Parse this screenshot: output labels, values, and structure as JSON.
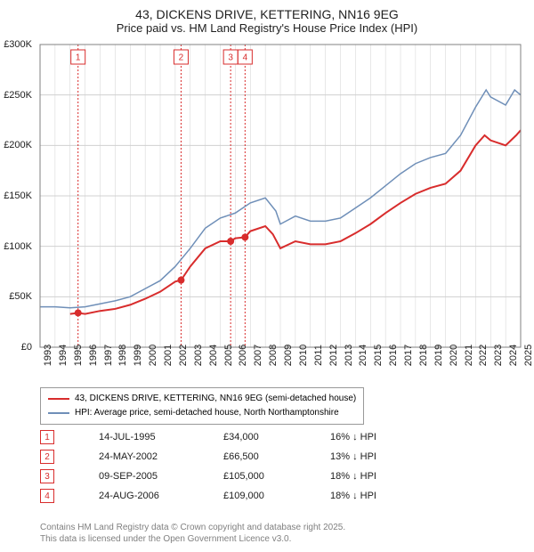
{
  "title": {
    "line1": "43, DICKENS DRIVE, KETTERING, NN16 9EG",
    "line2": "Price paid vs. HM Land Registry's House Price Index (HPI)"
  },
  "chart": {
    "type": "line",
    "background_color": "#ffffff",
    "grid_color": "#d0d0d0",
    "vline_color": "#d82c2c",
    "x_domain": [
      1993,
      2025
    ],
    "x_ticks": [
      1993,
      1994,
      1995,
      1996,
      1997,
      1998,
      1999,
      2000,
      2001,
      2002,
      2003,
      2004,
      2005,
      2006,
      2007,
      2008,
      2009,
      2010,
      2011,
      2012,
      2013,
      2014,
      2015,
      2016,
      2017,
      2018,
      2019,
      2020,
      2021,
      2022,
      2023,
      2024,
      2025
    ],
    "y_domain": [
      0,
      300000
    ],
    "y_ticks": [
      {
        "v": 0,
        "label": "£0"
      },
      {
        "v": 50000,
        "label": "£50K"
      },
      {
        "v": 100000,
        "label": "£100K"
      },
      {
        "v": 150000,
        "label": "£150K"
      },
      {
        "v": 200000,
        "label": "£200K"
      },
      {
        "v": 250000,
        "label": "£250K"
      },
      {
        "v": 300000,
        "label": "£300K"
      }
    ],
    "series": [
      {
        "name": "property",
        "color": "#d82c2c",
        "width": 2,
        "data": [
          [
            1995.0,
            33000
          ],
          [
            1995.53,
            34000
          ],
          [
            1996,
            33000
          ],
          [
            1997,
            36000
          ],
          [
            1998,
            38000
          ],
          [
            1999,
            42000
          ],
          [
            2000,
            48000
          ],
          [
            2001,
            55000
          ],
          [
            2002,
            65000
          ],
          [
            2002.39,
            66500
          ],
          [
            2003,
            80000
          ],
          [
            2004,
            98000
          ],
          [
            2005,
            105000
          ],
          [
            2005.69,
            105000
          ],
          [
            2006,
            108000
          ],
          [
            2006.65,
            109000
          ],
          [
            2007,
            115000
          ],
          [
            2008,
            120000
          ],
          [
            2008.5,
            112000
          ],
          [
            2009,
            98000
          ],
          [
            2010,
            105000
          ],
          [
            2011,
            102000
          ],
          [
            2012,
            102000
          ],
          [
            2013,
            105000
          ],
          [
            2014,
            113000
          ],
          [
            2015,
            122000
          ],
          [
            2016,
            133000
          ],
          [
            2017,
            143000
          ],
          [
            2018,
            152000
          ],
          [
            2019,
            158000
          ],
          [
            2020,
            162000
          ],
          [
            2021,
            175000
          ],
          [
            2022,
            200000
          ],
          [
            2022.6,
            210000
          ],
          [
            2023,
            205000
          ],
          [
            2024,
            200000
          ],
          [
            2024.7,
            210000
          ],
          [
            2025,
            215000
          ]
        ]
      },
      {
        "name": "hpi",
        "color": "#6f8fb8",
        "width": 1.5,
        "data": [
          [
            1993,
            40000
          ],
          [
            1994,
            40000
          ],
          [
            1995,
            39000
          ],
          [
            1996,
            40000
          ],
          [
            1997,
            43000
          ],
          [
            1998,
            46000
          ],
          [
            1999,
            50000
          ],
          [
            2000,
            58000
          ],
          [
            2001,
            66000
          ],
          [
            2002,
            80000
          ],
          [
            2003,
            98000
          ],
          [
            2004,
            118000
          ],
          [
            2005,
            128000
          ],
          [
            2006,
            133000
          ],
          [
            2007,
            143000
          ],
          [
            2008,
            148000
          ],
          [
            2008.7,
            135000
          ],
          [
            2009,
            122000
          ],
          [
            2010,
            130000
          ],
          [
            2011,
            125000
          ],
          [
            2012,
            125000
          ],
          [
            2013,
            128000
          ],
          [
            2014,
            138000
          ],
          [
            2015,
            148000
          ],
          [
            2016,
            160000
          ],
          [
            2017,
            172000
          ],
          [
            2018,
            182000
          ],
          [
            2019,
            188000
          ],
          [
            2020,
            192000
          ],
          [
            2021,
            210000
          ],
          [
            2022,
            238000
          ],
          [
            2022.7,
            255000
          ],
          [
            2023,
            248000
          ],
          [
            2024,
            240000
          ],
          [
            2024.6,
            255000
          ],
          [
            2025,
            250000
          ]
        ]
      }
    ],
    "sale_points": {
      "color": "#d82c2c",
      "radius": 4,
      "data": [
        [
          1995.53,
          34000
        ],
        [
          2002.39,
          66500
        ],
        [
          2005.69,
          105000
        ],
        [
          2006.65,
          109000
        ]
      ]
    },
    "marker_boxes": [
      {
        "n": "1",
        "x": 1995.53
      },
      {
        "n": "2",
        "x": 2002.39
      },
      {
        "n": "3",
        "x": 2005.69
      },
      {
        "n": "4",
        "x": 2006.65
      }
    ]
  },
  "legend": {
    "items": [
      {
        "color": "#d82c2c",
        "width": 2,
        "label": "43, DICKENS DRIVE, KETTERING, NN16 9EG (semi-detached house)"
      },
      {
        "color": "#6f8fb8",
        "width": 1.5,
        "label": "HPI: Average price, semi-detached house, North Northamptonshire"
      }
    ]
  },
  "events": [
    {
      "n": "1",
      "date": "14-JUL-1995",
      "price": "£34,000",
      "pct": "16% ↓ HPI"
    },
    {
      "n": "2",
      "date": "24-MAY-2002",
      "price": "£66,500",
      "pct": "13% ↓ HPI"
    },
    {
      "n": "3",
      "date": "09-SEP-2005",
      "price": "£105,000",
      "pct": "18% ↓ HPI"
    },
    {
      "n": "4",
      "date": "24-AUG-2006",
      "price": "£109,000",
      "pct": "18% ↓ HPI"
    }
  ],
  "footer": {
    "line1": "Contains HM Land Registry data © Crown copyright and database right 2025.",
    "line2": "This data is licensed under the Open Government Licence v3.0."
  }
}
